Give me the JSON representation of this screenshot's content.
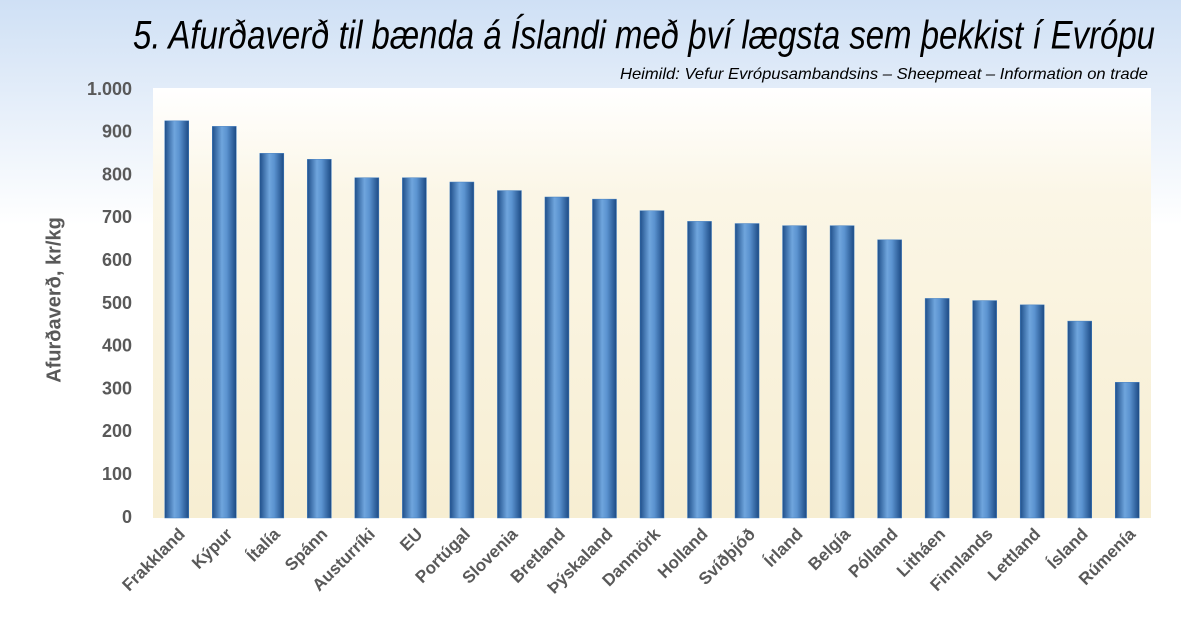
{
  "chart_data": {
    "type": "bar",
    "title": "5. Afurðaverð til bænda á Íslandi með því lægsta sem þekkist í Evrópu",
    "subtitle": "Heimild: Vefur Evrópusambandsins – Sheepmeat – Information on trade",
    "y_label": "Afurðaverð, kr/kg",
    "categories": [
      "Frakkland",
      "Kýpur",
      "Ítalía",
      "Spánn",
      "Austurríki",
      "EU",
      "Portúgal",
      "Slovenia",
      "Bretland",
      "Þýskaland",
      "Danmörk",
      "Holland",
      "Svíðþjóð",
      "Írland",
      "Belgía",
      "Pólland",
      "Litháen",
      "Finnlands",
      "Lettland",
      "Ísland",
      "Rúmenía"
    ],
    "values": [
      928,
      915,
      852,
      838,
      795,
      795,
      785,
      765,
      750,
      745,
      718,
      693,
      688,
      683,
      683,
      650,
      513,
      508,
      498,
      460,
      317
    ],
    "color": "#3f7cc0",
    "ylim": [
      0,
      1000
    ],
    "yticks": [
      0,
      100,
      200,
      300,
      400,
      500,
      600,
      700,
      800,
      900,
      {
        "value": 1000,
        "label": "1.000"
      }
    ],
    "grid": false
  }
}
